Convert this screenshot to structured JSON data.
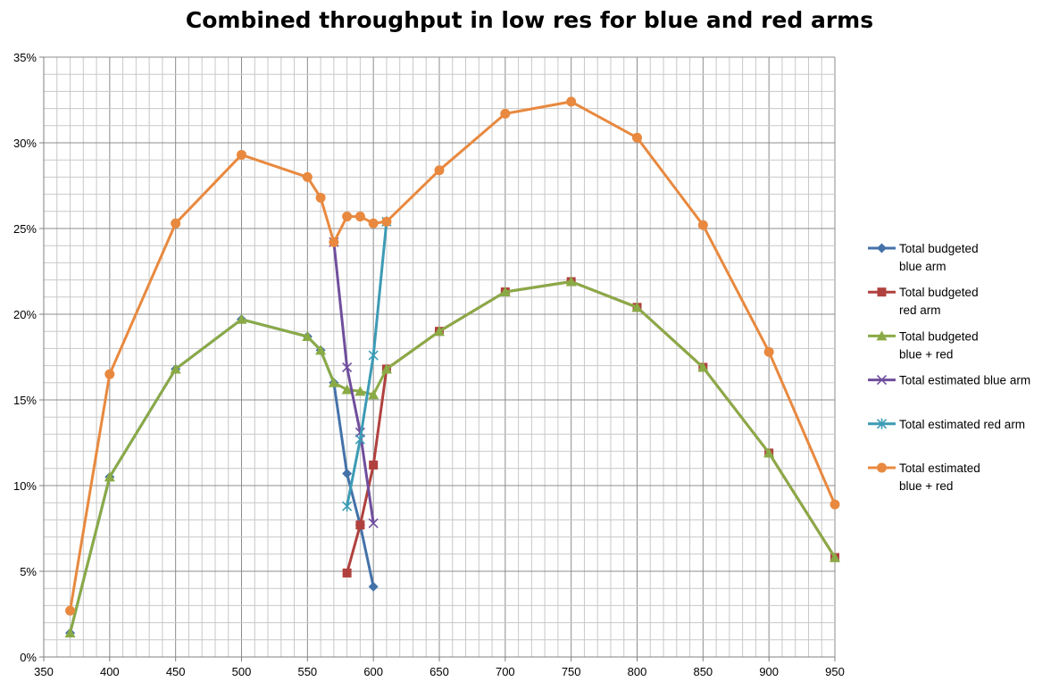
{
  "chart_data": {
    "type": "line",
    "title": "Combined throughput in low res for blue and red arms",
    "xlabel": "",
    "ylabel": "",
    "xlim": [
      350,
      950
    ],
    "ylim": [
      0,
      35
    ],
    "x_ticks": [
      "350",
      "400",
      "450",
      "500",
      "550",
      "600",
      "650",
      "700",
      "750",
      "800",
      "850",
      "900",
      "950"
    ],
    "y_ticks": [
      "0%",
      "5%",
      "10%",
      "15%",
      "20%",
      "25%",
      "30%",
      "35%"
    ],
    "grid": true,
    "legend_position": "right",
    "series": [
      {
        "name": "Total budgeted blue arm",
        "label_lines": [
          "Total budgeted",
          "blue arm"
        ],
        "color": "#4472A8",
        "marker": "diamond",
        "points": [
          [
            370,
            1.4
          ],
          [
            400,
            10.5
          ],
          [
            450,
            16.8
          ],
          [
            500,
            19.7
          ],
          [
            550,
            18.7
          ],
          [
            560,
            17.9
          ],
          [
            570,
            16.0
          ],
          [
            580,
            10.7
          ],
          [
            590,
            7.7
          ],
          [
            600,
            4.1
          ]
        ]
      },
      {
        "name": "Total budgeted red arm",
        "label_lines": [
          "Total budgeted",
          "red arm"
        ],
        "color": "#B0413E",
        "marker": "square",
        "points": [
          [
            580,
            4.9
          ],
          [
            590,
            7.7
          ],
          [
            600,
            11.2
          ],
          [
            610,
            16.8
          ],
          [
            650,
            19.0
          ],
          [
            700,
            21.3
          ],
          [
            750,
            21.9
          ],
          [
            800,
            20.4
          ],
          [
            850,
            16.9
          ],
          [
            900,
            11.9
          ],
          [
            950,
            5.8
          ]
        ]
      },
      {
        "name": "Total budgeted blue + red",
        "label_lines": [
          "Total budgeted",
          "blue + red"
        ],
        "color": "#8AAA46",
        "marker": "triangle",
        "points": [
          [
            370,
            1.4
          ],
          [
            400,
            10.5
          ],
          [
            450,
            16.8
          ],
          [
            500,
            19.7
          ],
          [
            550,
            18.7
          ],
          [
            560,
            17.9
          ],
          [
            570,
            16.0
          ],
          [
            580,
            15.6
          ],
          [
            590,
            15.5
          ],
          [
            600,
            15.3
          ],
          [
            610,
            16.8
          ],
          [
            650,
            19.0
          ],
          [
            700,
            21.3
          ],
          [
            750,
            21.9
          ],
          [
            800,
            20.4
          ],
          [
            850,
            16.9
          ],
          [
            900,
            11.9
          ],
          [
            950,
            5.8
          ]
        ]
      },
      {
        "name": "Total estimated blue arm",
        "label_lines": [
          "Total estimated blue arm"
        ],
        "color": "#6F4E9C",
        "marker": "x",
        "points": [
          [
            570,
            24.2
          ],
          [
            580,
            16.9
          ],
          [
            590,
            13.1
          ],
          [
            600,
            7.8
          ]
        ]
      },
      {
        "name": "Total estimated red arm",
        "label_lines": [
          "Total estimated red arm"
        ],
        "color": "#3C9BB5",
        "marker": "star",
        "points": [
          [
            580,
            8.8
          ],
          [
            590,
            12.7
          ],
          [
            600,
            17.6
          ],
          [
            610,
            25.4
          ]
        ]
      },
      {
        "name": "Total estimated blue + red",
        "label_lines": [
          "Total estimated",
          "blue + red"
        ],
        "color": "#E8893F",
        "marker": "circle",
        "points": [
          [
            370,
            2.7
          ],
          [
            400,
            16.5
          ],
          [
            450,
            25.3
          ],
          [
            500,
            29.3
          ],
          [
            550,
            28.0
          ],
          [
            560,
            26.8
          ],
          [
            570,
            24.2
          ],
          [
            580,
            25.7
          ],
          [
            590,
            25.7
          ],
          [
            600,
            25.3
          ],
          [
            610,
            25.4
          ],
          [
            650,
            28.4
          ],
          [
            700,
            31.7
          ],
          [
            750,
            32.4
          ],
          [
            800,
            30.3
          ],
          [
            850,
            25.2
          ],
          [
            900,
            17.8
          ],
          [
            950,
            8.9
          ]
        ]
      }
    ]
  }
}
